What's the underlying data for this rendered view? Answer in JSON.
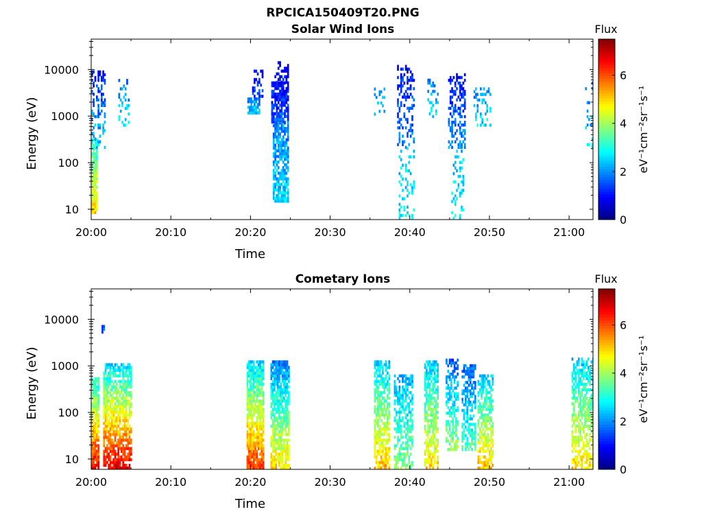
{
  "figure_title": "RPCICA150409T20.PNG",
  "chart_data": [
    {
      "type": "heatmap",
      "title": "Solar Wind Ions",
      "xlabel": "Time",
      "ylabel": "Energy (eV)",
      "x_ticks": [
        "20:00",
        "20:10",
        "20:20",
        "20:30",
        "20:40",
        "20:50",
        "21:00"
      ],
      "x_range_minutes": [
        0,
        63
      ],
      "y_scale": "log",
      "y_range": [
        6,
        45000
      ],
      "y_ticks": [
        "10",
        "100",
        "1000",
        "10000"
      ],
      "colorbar": {
        "label": "Flux",
        "unit": "eV⁻¹cm⁻²sr⁻¹s⁻¹",
        "range": [
          0,
          7.5
        ],
        "ticks": [
          "0",
          "2",
          "4",
          "6"
        ]
      },
      "clusters": [
        {
          "t0": 0.0,
          "t1": 0.7,
          "e0": 8,
          "e1": 300,
          "v0": 5.0,
          "v1": 3.0,
          "density": 0.85
        },
        {
          "t0": 0.0,
          "t1": 1.8,
          "e0": 200,
          "e1": 9000,
          "v0": 2.6,
          "v1": 1.0,
          "density": 0.35
        },
        {
          "t0": 3.4,
          "t1": 4.7,
          "e0": 600,
          "e1": 6000,
          "v0": 2.6,
          "v1": 1.8,
          "density": 0.3
        },
        {
          "t0": 19.6,
          "t1": 21.2,
          "e0": 1100,
          "e1": 2200,
          "v0": 2.4,
          "v1": 2.0,
          "density": 0.8
        },
        {
          "t0": 20.2,
          "t1": 21.5,
          "e0": 2500,
          "e1": 9000,
          "v0": 1.5,
          "v1": 1.0,
          "density": 0.35
        },
        {
          "t0": 22.6,
          "t1": 24.8,
          "e0": 700,
          "e1": 5000,
          "v0": 1.6,
          "v1": 0.9,
          "density": 0.8
        },
        {
          "t0": 22.8,
          "t1": 24.8,
          "e0": 14,
          "e1": 700,
          "v0": 2.5,
          "v1": 1.9,
          "density": 0.75
        },
        {
          "t0": 23.0,
          "t1": 24.8,
          "e0": 5000,
          "e1": 14000,
          "v0": 0.9,
          "v1": 0.6,
          "density": 0.35
        },
        {
          "t0": 35.5,
          "t1": 36.8,
          "e0": 900,
          "e1": 5000,
          "v0": 2.6,
          "v1": 2.0,
          "density": 0.25
        },
        {
          "t0": 38.4,
          "t1": 40.6,
          "e0": 200,
          "e1": 12000,
          "v0": 1.9,
          "v1": 1.0,
          "density": 0.35
        },
        {
          "t0": 38.6,
          "t1": 40.6,
          "e0": 6,
          "e1": 200,
          "v0": 2.7,
          "v1": 2.3,
          "density": 0.25
        },
        {
          "t0": 42.2,
          "t1": 43.5,
          "e0": 800,
          "e1": 6000,
          "v0": 2.6,
          "v1": 1.8,
          "density": 0.25
        },
        {
          "t0": 44.8,
          "t1": 47.0,
          "e0": 200,
          "e1": 8000,
          "v0": 2.0,
          "v1": 1.0,
          "density": 0.4
        },
        {
          "t0": 45.2,
          "t1": 46.8,
          "e0": 6,
          "e1": 200,
          "v0": 2.8,
          "v1": 2.3,
          "density": 0.25
        },
        {
          "t0": 48.0,
          "t1": 50.2,
          "e0": 600,
          "e1": 4000,
          "v0": 2.6,
          "v1": 2.0,
          "density": 0.3
        },
        {
          "t0": 62.0,
          "t1": 63.0,
          "e0": 200,
          "e1": 6000,
          "v0": 2.5,
          "v1": 1.8,
          "density": 0.15
        }
      ]
    },
    {
      "type": "heatmap",
      "title": "Cometary Ions",
      "xlabel": "Time",
      "ylabel": "Energy (eV)",
      "x_ticks": [
        "20:00",
        "20:10",
        "20:20",
        "20:30",
        "20:40",
        "20:50",
        "21:00"
      ],
      "x_range_minutes": [
        0,
        63
      ],
      "y_scale": "log",
      "y_range": [
        6,
        45000
      ],
      "y_ticks": [
        "10",
        "100",
        "1000",
        "10000"
      ],
      "colorbar": {
        "label": "Flux",
        "unit": "eV⁻¹cm⁻²sr⁻¹s⁻¹",
        "range": [
          0,
          7.5
        ],
        "ticks": [
          "0",
          "2",
          "4",
          "6"
        ]
      },
      "clusters": [
        {
          "t0": 0.0,
          "t1": 1.0,
          "e0": 6,
          "e1": 500,
          "v0": 6.6,
          "v1": 3.0,
          "density": 0.9
        },
        {
          "t0": 1.5,
          "t1": 5.0,
          "e0": 6,
          "e1": 1000,
          "v0": 6.8,
          "v1": 2.6,
          "density": 0.75
        },
        {
          "t0": 1.3,
          "t1": 1.7,
          "e0": 5000,
          "e1": 7000,
          "v0": 1.5,
          "v1": 1.5,
          "density": 0.9
        },
        {
          "t0": 19.5,
          "t1": 21.6,
          "e0": 6,
          "e1": 1300,
          "v0": 6.2,
          "v1": 2.4,
          "density": 0.85
        },
        {
          "t0": 22.5,
          "t1": 24.8,
          "e0": 6,
          "e1": 1300,
          "v0": 5.0,
          "v1": 1.8,
          "density": 0.8
        },
        {
          "t0": 35.5,
          "t1": 37.5,
          "e0": 6,
          "e1": 1300,
          "v0": 5.2,
          "v1": 2.4,
          "density": 0.7
        },
        {
          "t0": 38.0,
          "t1": 40.3,
          "e0": 6,
          "e1": 600,
          "v0": 3.8,
          "v1": 2.2,
          "density": 0.6
        },
        {
          "t0": 41.8,
          "t1": 43.6,
          "e0": 6,
          "e1": 1300,
          "v0": 5.0,
          "v1": 2.4,
          "density": 0.7
        },
        {
          "t0": 44.5,
          "t1": 46.0,
          "e0": 15,
          "e1": 1300,
          "v0": 4.0,
          "v1": 1.6,
          "density": 0.6
        },
        {
          "t0": 46.5,
          "t1": 48.2,
          "e0": 15,
          "e1": 1000,
          "v0": 3.4,
          "v1": 1.6,
          "density": 0.6
        },
        {
          "t0": 48.5,
          "t1": 50.4,
          "e0": 6,
          "e1": 600,
          "v0": 5.2,
          "v1": 2.4,
          "density": 0.65
        },
        {
          "t0": 60.3,
          "t1": 63.0,
          "e0": 6,
          "e1": 1500,
          "v0": 5.0,
          "v1": 2.4,
          "density": 0.6
        }
      ]
    }
  ]
}
